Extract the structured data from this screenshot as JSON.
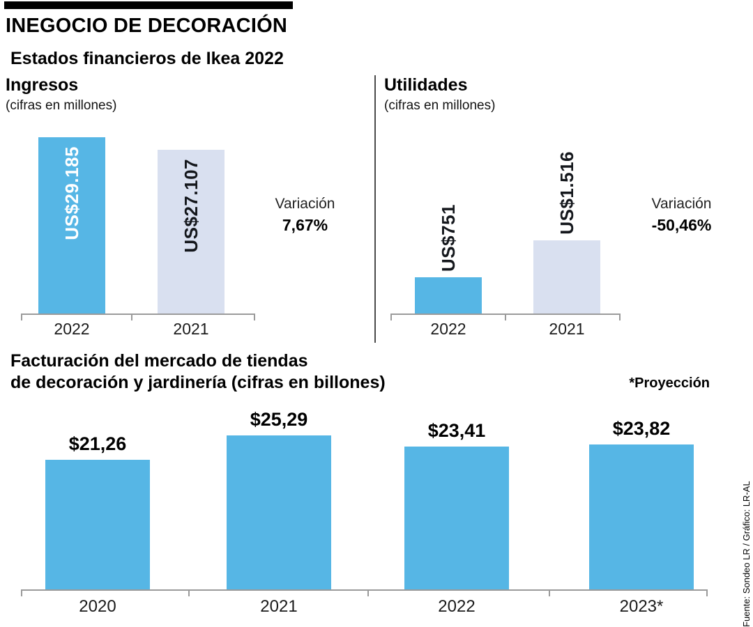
{
  "header": {
    "title": "INEGOCIO DE DECORACIÓN",
    "subtitle": "Estados financieros de Ikea 2022"
  },
  "colors": {
    "blue": "#56b6e5",
    "lavender": "#d9e0f0"
  },
  "chart_data": [
    {
      "type": "bar",
      "title": "Ingresos",
      "units_label": "(cifras en millones)",
      "categories": [
        "2022",
        "2021"
      ],
      "values": [
        29185,
        27107
      ],
      "value_labels": [
        "US$29.185",
        "US$27.107"
      ],
      "variation_label": "Variación",
      "variation_value": "7,67%"
    },
    {
      "type": "bar",
      "title": "Utilidades",
      "units_label": "(cifras en millones)",
      "categories": [
        "2022",
        "2021"
      ],
      "values": [
        751,
        1516
      ],
      "value_labels": [
        "US$751",
        "US$1.516"
      ],
      "variation_label": "Variación",
      "variation_value": "-50,46%"
    },
    {
      "type": "bar",
      "title_line1": "Facturación del mercado de tiendas",
      "title_line2": "de decoración y jardinería (cifras en billones)",
      "note": "*Proyección",
      "categories": [
        "2020",
        "2021",
        "2022",
        "2023*"
      ],
      "values": [
        21.26,
        25.29,
        23.41,
        23.82
      ],
      "value_labels": [
        "$21,26",
        "$25,29",
        "$23,41",
        "$23,82"
      ]
    }
  ],
  "source": "Fuente: Sondeo LR / Gráfico: LR-AL"
}
